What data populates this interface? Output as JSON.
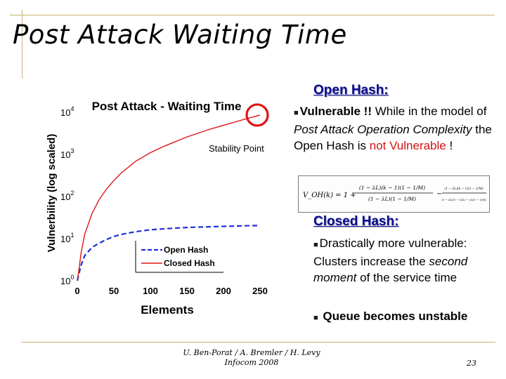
{
  "slide_title": "Post Attack Waiting Time",
  "chart_data": {
    "type": "line",
    "title": "Post Attack - Waiting Time",
    "xlabel": "Elements",
    "ylabel": "Vulnerbility (log scaled)",
    "y_scale": "log",
    "xlim": [
      0,
      250
    ],
    "x_ticks": [
      "0",
      "50",
      "100",
      "150",
      "200",
      "250"
    ],
    "y_ticks": [
      {
        "base": "10",
        "exp": "0"
      },
      {
        "base": "10",
        "exp": "1"
      },
      {
        "base": "10",
        "exp": "2"
      },
      {
        "base": "10",
        "exp": "3"
      },
      {
        "base": "10",
        "exp": "4"
      }
    ],
    "legend_position": "bottom-center",
    "annotation": "Stability Point",
    "series": [
      {
        "name": "Open Hash",
        "color": "#1f2fd6",
        "dash": "dashed",
        "x": [
          0,
          2,
          5,
          10,
          20,
          30,
          40,
          50,
          60,
          80,
          100,
          120,
          150,
          180,
          200,
          230,
          250
        ],
        "y": [
          1,
          1.4,
          2.3,
          3.9,
          6.2,
          7.8,
          9.5,
          11.3,
          12.6,
          14.6,
          16.2,
          17.2,
          18.4,
          19.1,
          19.6,
          20.2,
          20.5
        ]
      },
      {
        "name": "Closed Hash",
        "color": "#e01414",
        "dash": "solid",
        "x": [
          0,
          2,
          5,
          10,
          20,
          30,
          40,
          50,
          60,
          80,
          100,
          120,
          150,
          180,
          200,
          220,
          240,
          250
        ],
        "y": [
          1,
          1.7,
          4.4,
          12.5,
          39,
          85,
          150,
          240,
          360,
          690,
          1100,
          1600,
          2600,
          3900,
          4900,
          6200,
          7700,
          8600
        ]
      }
    ],
    "highlight_color": "#e01414"
  },
  "open_hash": {
    "heading": "Open Hash:",
    "bullet_bold": "Vulnerable !!",
    "text_before_italic": " While in the model of ",
    "italic_text": "Post Attack Operation Complexity",
    "text_after_italic": " the Open Hash is ",
    "red_text": "not Vulnerable",
    "text_end": " !"
  },
  "formula": {
    "lhs": "V_OH(k) = 1 +",
    "num_top": "(1 − λL)(k − 1)(1 − 1/M)",
    "den_top": "(1 − λL)(1 − 1/M)",
    "mid": "−",
    "num_bot": "(1 − λL)(k − 1)(1 − 1/M)",
    "den_bot": "(1 − λL)(1 − 2λL) − λL(1 − 1/M)"
  },
  "closed_hash": {
    "heading": "Closed Hash:",
    "bullet1_text_before": "Drastically more vulnerable: Clusters increase the ",
    "bullet1_italic": "second moment",
    "bullet1_text_after": " of the service time",
    "bullet2_bold": "Queue becomes unstable"
  },
  "footer": {
    "line1": "U. Ben-Porat / A. Bremler / H. Levy",
    "line2": "Infocom 2008",
    "page": "23"
  }
}
